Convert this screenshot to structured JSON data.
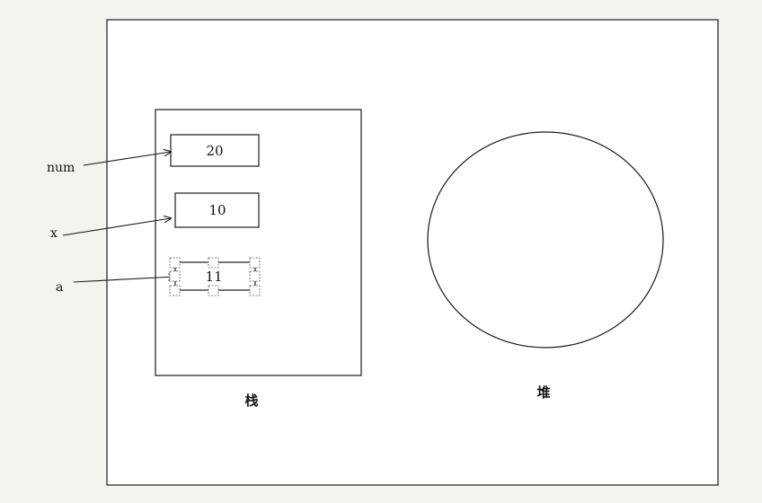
{
  "stack": {
    "label": "栈",
    "cells": [
      {
        "var": "num",
        "value": "20"
      },
      {
        "var": "x",
        "value": "10"
      },
      {
        "var": "a",
        "value": "11"
      }
    ]
  },
  "heap": {
    "label": "堆"
  },
  "colors": {
    "line": "#1a1a1a",
    "panel": "#ffffff",
    "background": "#f4f3ef",
    "handle": "#555555"
  }
}
